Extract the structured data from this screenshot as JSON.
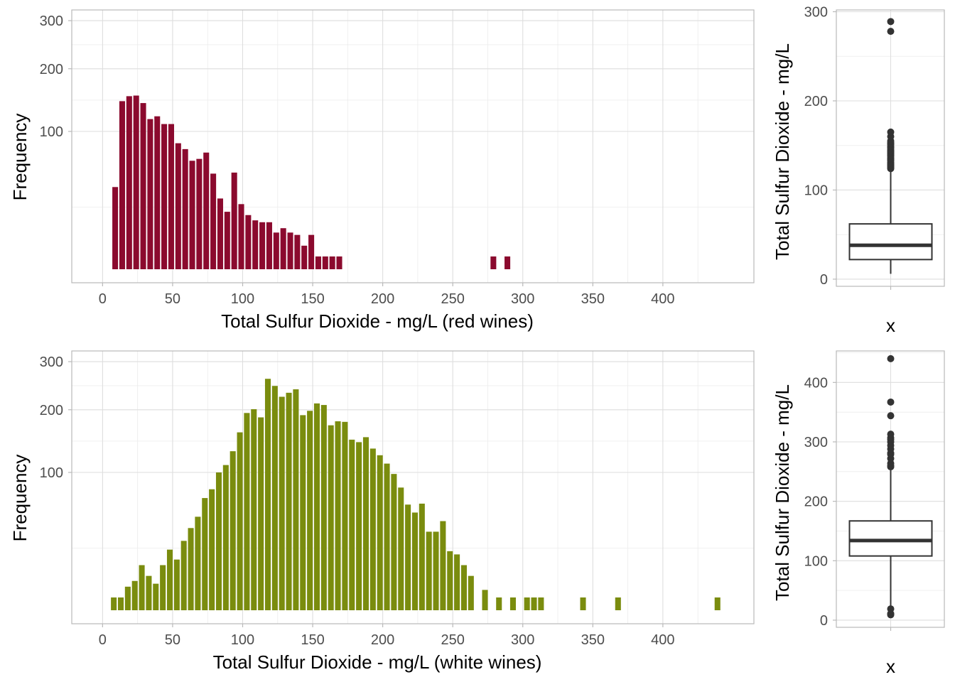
{
  "chart_data": [
    {
      "type": "bar",
      "subtype": "histogram",
      "xlabel": "Total Sulfur Dioxide - mg/L (red wines)",
      "ylabel": "Frequency",
      "y_scale": "sqrt",
      "xlim": [
        -22,
        465
      ],
      "ylim": [
        0,
        325
      ],
      "x_ticks": [
        0,
        50,
        100,
        150,
        200,
        250,
        300,
        350,
        400
      ],
      "y_ticks": [
        100,
        200,
        300
      ],
      "bin_width": 5,
      "color": "#8B0A2E",
      "grid": true,
      "series": [
        {
          "x": [
            9,
            14,
            19,
            24,
            29,
            34,
            39,
            44,
            49,
            54,
            59,
            64,
            69,
            74,
            79,
            84,
            89,
            94,
            99,
            104,
            109,
            114,
            119,
            124,
            129,
            134,
            139,
            144,
            149,
            154,
            159,
            164,
            169,
            279,
            289
          ],
          "values": [
            40,
            144,
            152,
            153,
            141,
            117,
            121,
            110,
            110,
            85,
            78,
            65,
            67,
            74,
            52,
            31,
            22,
            53,
            27,
            20,
            17,
            16,
            16,
            11,
            13,
            11,
            10,
            6,
            10,
            3,
            3,
            3,
            3,
            3,
            3
          ]
        }
      ]
    },
    {
      "type": "box",
      "xlabel": "x",
      "ylabel": "Total Sulfur Dioxide - mg/L",
      "ylim": [
        -8,
        302
      ],
      "y_ticks": [
        0,
        100,
        200,
        300
      ],
      "q1": 22,
      "median": 38,
      "q3": 62,
      "whisker_low": 6,
      "whisker_high": 122,
      "outliers": [
        124,
        125,
        126,
        127,
        128,
        129,
        130,
        131,
        133,
        134,
        135,
        136,
        138,
        139,
        140,
        141,
        142,
        143,
        144,
        145,
        147,
        148,
        149,
        151,
        152,
        153,
        155,
        160,
        165,
        278,
        289
      ],
      "grid": true
    },
    {
      "type": "bar",
      "subtype": "histogram",
      "xlabel": "Total Sulfur Dioxide - mg/L (white wines)",
      "ylabel": "Frequency",
      "y_scale": "sqrt",
      "xlim": [
        -22,
        465
      ],
      "ylim": [
        0,
        325
      ],
      "x_ticks": [
        0,
        50,
        100,
        150,
        200,
        250,
        300,
        350,
        400
      ],
      "y_ticks": [
        100,
        200,
        300
      ],
      "bin_width": 5,
      "color": "#7A8C0E",
      "grid": true,
      "series": [
        {
          "x": [
            8,
            13,
            18,
            23,
            28,
            33,
            38,
            43,
            48,
            53,
            58,
            63,
            68,
            73,
            78,
            83,
            88,
            93,
            98,
            103,
            108,
            113,
            118,
            123,
            128,
            133,
            138,
            143,
            148,
            153,
            158,
            163,
            168,
            173,
            178,
            183,
            188,
            193,
            198,
            203,
            208,
            213,
            218,
            223,
            228,
            233,
            238,
            243,
            248,
            253,
            258,
            263,
            273,
            283,
            293,
            303,
            308,
            313,
            343,
            368,
            439
          ],
          "values": [
            3,
            3,
            6,
            8,
            15,
            10,
            7,
            15,
            24,
            18,
            30,
            40,
            50,
            69,
            79,
            100,
            110,
            130,
            160,
            194,
            201,
            186,
            262,
            247,
            225,
            233,
            240,
            190,
            198,
            212,
            209,
            172,
            179,
            178,
            148,
            144,
            152,
            134,
            124,
            112,
            98,
            81,
            62,
            54,
            63,
            37,
            37,
            46,
            23,
            21,
            15,
            10,
            5,
            3,
            3,
            3,
            3,
            3,
            3,
            3,
            3
          ]
        }
      ]
    },
    {
      "type": "box",
      "xlabel": "x",
      "ylabel": "Total Sulfur Dioxide - mg/L",
      "ylim": [
        -12,
        453
      ],
      "y_ticks": [
        0,
        100,
        200,
        300,
        400
      ],
      "q1": 108,
      "median": 134,
      "q3": 167,
      "whisker_low": 18,
      "whisker_high": 255,
      "outliers": [
        9,
        10,
        11,
        19,
        258,
        260,
        264,
        272,
        279,
        281,
        288,
        294,
        300,
        304,
        307,
        313,
        344,
        367,
        440
      ],
      "grid": true
    }
  ]
}
